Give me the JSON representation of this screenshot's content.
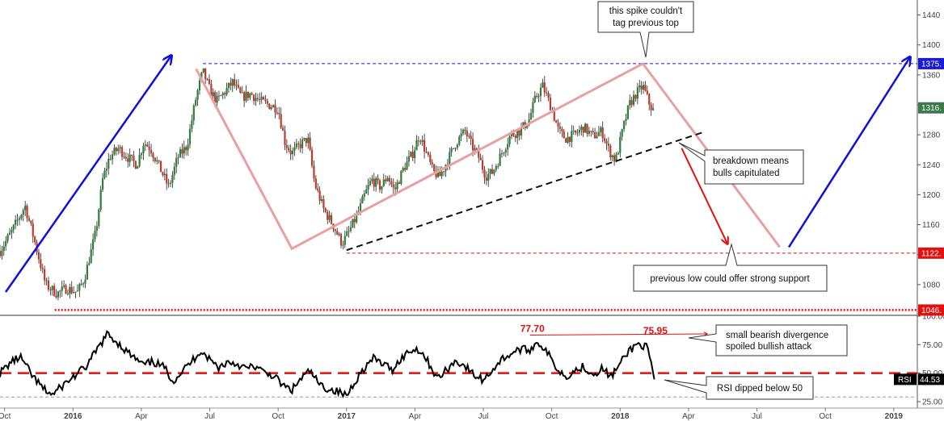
{
  "chart_data": {
    "type": "candlestick",
    "price_axis": {
      "ticks": [
        1080,
        1120,
        1160,
        1200,
        1240,
        1280,
        1320,
        1360,
        1400,
        1440
      ],
      "tick_labels": [
        "1080",
        "",
        "1160",
        "1200",
        "1240",
        "1280",
        "",
        "1360",
        "1400",
        "1440"
      ],
      "range": [
        1040,
        1460
      ]
    },
    "rsi_axis": {
      "ticks": [
        25,
        50,
        75,
        100
      ],
      "tick_labels": [
        "25.00",
        "50.00",
        "75.00",
        "100.00"
      ],
      "range": [
        20,
        100
      ]
    },
    "time_axis": {
      "labels": [
        {
          "t": 0.0,
          "text": "Oct",
          "bold": false
        },
        {
          "t": 3.0,
          "text": "2016",
          "bold": true
        },
        {
          "t": 6.0,
          "text": "Apr",
          "bold": false
        },
        {
          "t": 9.0,
          "text": "Jul",
          "bold": false
        },
        {
          "t": 12.0,
          "text": "Oct",
          "bold": false
        },
        {
          "t": 15.0,
          "text": "2017",
          "bold": true
        },
        {
          "t": 18.0,
          "text": "Apr",
          "bold": false
        },
        {
          "t": 21.0,
          "text": "Jul",
          "bold": false
        },
        {
          "t": 24.0,
          "text": "Oct",
          "bold": false
        },
        {
          "t": 27.0,
          "text": "2018",
          "bold": true
        },
        {
          "t": 30.0,
          "text": "Apr",
          "bold": false
        },
        {
          "t": 33.0,
          "text": "Jul",
          "bold": false
        },
        {
          "t": 36.0,
          "text": "Oct",
          "bold": false
        },
        {
          "t": 39.0,
          "text": "2019",
          "bold": true
        }
      ],
      "range": [
        -0.2,
        40.0
      ]
    },
    "price_path": [
      [
        -0.2,
        1125
      ],
      [
        0.3,
        1150
      ],
      [
        0.9,
        1185
      ],
      [
        1.3,
        1140
      ],
      [
        1.8,
        1080
      ],
      [
        2.3,
        1068
      ],
      [
        2.7,
        1075
      ],
      [
        3.2,
        1070
      ],
      [
        3.5,
        1088
      ],
      [
        4.0,
        1150
      ],
      [
        4.3,
        1220
      ],
      [
        4.6,
        1250
      ],
      [
        5.0,
        1262
      ],
      [
        5.4,
        1250
      ],
      [
        5.8,
        1240
      ],
      [
        6.1,
        1270
      ],
      [
        6.4,
        1262
      ],
      [
        6.9,
        1230
      ],
      [
        7.2,
        1210
      ],
      [
        7.6,
        1250
      ],
      [
        8.0,
        1265
      ],
      [
        8.4,
        1330
      ],
      [
        8.7,
        1365
      ],
      [
        9.0,
        1340
      ],
      [
        9.3,
        1325
      ],
      [
        9.6,
        1335
      ],
      [
        10.0,
        1350
      ],
      [
        10.4,
        1330
      ],
      [
        10.8,
        1335
      ],
      [
        11.2,
        1325
      ],
      [
        11.6,
        1320
      ],
      [
        12.0,
        1315
      ],
      [
        12.3,
        1270
      ],
      [
        12.6,
        1255
      ],
      [
        12.9,
        1265
      ],
      [
        13.3,
        1275
      ],
      [
        13.6,
        1215
      ],
      [
        14.0,
        1180
      ],
      [
        14.4,
        1160
      ],
      [
        14.8,
        1135
      ],
      [
        15.1,
        1150
      ],
      [
        15.5,
        1175
      ],
      [
        15.8,
        1200
      ],
      [
        16.1,
        1220
      ],
      [
        16.5,
        1210
      ],
      [
        16.8,
        1225
      ],
      [
        17.1,
        1205
      ],
      [
        17.5,
        1235
      ],
      [
        17.9,
        1255
      ],
      [
        18.2,
        1280
      ],
      [
        18.5,
        1255
      ],
      [
        18.8,
        1230
      ],
      [
        19.1,
        1225
      ],
      [
        19.5,
        1250
      ],
      [
        19.8,
        1270
      ],
      [
        20.2,
        1285
      ],
      [
        20.5,
        1265
      ],
      [
        20.8,
        1250
      ],
      [
        21.1,
        1225
      ],
      [
        21.4,
        1230
      ],
      [
        21.8,
        1255
      ],
      [
        22.2,
        1280
      ],
      [
        22.6,
        1285
      ],
      [
        23.0,
        1300
      ],
      [
        23.3,
        1330
      ],
      [
        23.6,
        1345
      ],
      [
        24.0,
        1315
      ],
      [
        24.3,
        1285
      ],
      [
        24.6,
        1275
      ],
      [
        25.0,
        1280
      ],
      [
        25.4,
        1290
      ],
      [
        25.8,
        1278
      ],
      [
        26.2,
        1285
      ],
      [
        26.5,
        1260
      ],
      [
        26.8,
        1245
      ],
      [
        27.1,
        1285
      ],
      [
        27.4,
        1320
      ],
      [
        27.7,
        1335
      ],
      [
        28.0,
        1345
      ],
      [
        28.3,
        1320
      ],
      [
        28.5,
        1310
      ]
    ],
    "rsi_path": [
      [
        -0.2,
        50
      ],
      [
        0.3,
        60
      ],
      [
        0.7,
        64
      ],
      [
        1.2,
        48
      ],
      [
        1.7,
        36
      ],
      [
        2.1,
        31
      ],
      [
        2.6,
        40
      ],
      [
        3.1,
        48
      ],
      [
        3.6,
        56
      ],
      [
        4.1,
        72
      ],
      [
        4.5,
        84
      ],
      [
        4.9,
        78
      ],
      [
        5.3,
        70
      ],
      [
        5.7,
        63
      ],
      [
        6.1,
        57
      ],
      [
        6.5,
        60
      ],
      [
        7.0,
        55
      ],
      [
        7.4,
        43
      ],
      [
        7.8,
        52
      ],
      [
        8.2,
        60
      ],
      [
        8.6,
        70
      ],
      [
        9.0,
        62
      ],
      [
        9.4,
        55
      ],
      [
        9.8,
        60
      ],
      [
        10.2,
        58
      ],
      [
        10.6,
        54
      ],
      [
        11.0,
        56
      ],
      [
        11.4,
        50
      ],
      [
        11.8,
        48
      ],
      [
        12.2,
        39
      ],
      [
        12.6,
        35
      ],
      [
        13.0,
        45
      ],
      [
        13.4,
        52
      ],
      [
        13.8,
        40
      ],
      [
        14.2,
        36
      ],
      [
        14.6,
        34
      ],
      [
        15.0,
        30
      ],
      [
        15.4,
        44
      ],
      [
        15.8,
        55
      ],
      [
        16.2,
        63
      ],
      [
        16.6,
        58
      ],
      [
        17.0,
        53
      ],
      [
        17.4,
        63
      ],
      [
        17.8,
        70
      ],
      [
        18.2,
        71
      ],
      [
        18.6,
        59
      ],
      [
        19.0,
        45
      ],
      [
        19.4,
        53
      ],
      [
        19.8,
        61
      ],
      [
        20.2,
        56
      ],
      [
        20.6,
        48
      ],
      [
        21.0,
        44
      ],
      [
        21.4,
        53
      ],
      [
        21.8,
        62
      ],
      [
        22.2,
        67
      ],
      [
        22.6,
        71
      ],
      [
        23.0,
        70
      ],
      [
        23.4,
        77.7
      ],
      [
        23.8,
        68
      ],
      [
        24.2,
        55
      ],
      [
        24.6,
        47
      ],
      [
        25.0,
        52
      ],
      [
        25.4,
        56
      ],
      [
        25.8,
        49
      ],
      [
        26.2,
        54
      ],
      [
        26.6,
        47
      ],
      [
        27.0,
        58
      ],
      [
        27.4,
        70
      ],
      [
        27.8,
        75.95
      ],
      [
        28.2,
        72
      ],
      [
        28.5,
        44.53
      ]
    ],
    "levels": {
      "resistance": {
        "value": 1375,
        "label": "1375."
      },
      "current": {
        "value": 1316,
        "label": "1316."
      },
      "support": {
        "value": 1122,
        "label": "1122."
      },
      "low": {
        "value": 1046,
        "label": "1046."
      }
    },
    "rsi_marker": {
      "label": "RSI",
      "value_label": "44.53",
      "value": 44.53
    },
    "rsi_peaks": [
      {
        "t": 23.4,
        "value": 77.7,
        "label": "77.70"
      },
      {
        "t": 27.8,
        "value": 75.95,
        "label": "75.95"
      }
    ],
    "annotations": [
      {
        "text": [
          "this spike couldn't",
          "tag previous top"
        ]
      },
      {
        "text": [
          "breakdown means",
          "bulls capitulated"
        ]
      },
      {
        "text": [
          "previous low could offer strong support"
        ]
      },
      {
        "text": [
          "small bearish divergence",
          "spoiled bullish attack"
        ]
      },
      {
        "text": [
          "RSI dipped below 50"
        ]
      }
    ]
  }
}
